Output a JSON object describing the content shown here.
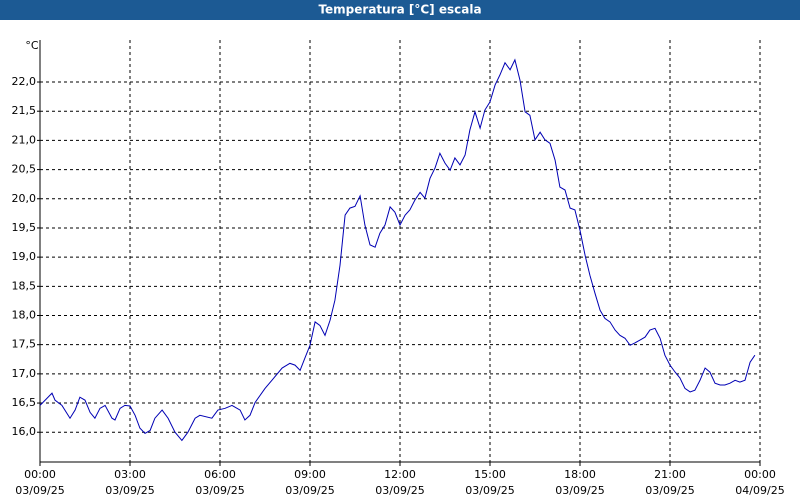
{
  "chart_data": {
    "type": "line",
    "title": "Temperatura [°C] escala",
    "y_label": "°C",
    "xlim": [
      0,
      24
    ],
    "ylim": [
      15.49,
      22.72
    ],
    "xticks": [
      {
        "value": 0,
        "label": "00:00",
        "date": "03/09/25"
      },
      {
        "value": 3,
        "label": "03:00",
        "date": "03/09/25"
      },
      {
        "value": 6,
        "label": "06:00",
        "date": "03/09/25"
      },
      {
        "value": 9,
        "label": "09:00",
        "date": "03/09/25"
      },
      {
        "value": 12,
        "label": "12:00",
        "date": "03/09/25"
      },
      {
        "value": 15,
        "label": "15:00",
        "date": "03/09/25"
      },
      {
        "value": 18,
        "label": "18:00",
        "date": "03/09/25"
      },
      {
        "value": 21,
        "label": "21:00",
        "date": "03/09/25"
      },
      {
        "value": 24,
        "label": "00:00",
        "date": "04/09/25"
      }
    ],
    "yticks": [
      {
        "value": 16,
        "label": "16,0"
      },
      {
        "value": 16.5,
        "label": "16,5"
      },
      {
        "value": 17,
        "label": "17,0"
      },
      {
        "value": 17.5,
        "label": "17,5"
      },
      {
        "value": 18,
        "label": "18,0"
      },
      {
        "value": 18.5,
        "label": "18,5"
      },
      {
        "value": 19,
        "label": "19,0"
      },
      {
        "value": 19.5,
        "label": "19,5"
      },
      {
        "value": 20,
        "label": "20,0"
      },
      {
        "value": 20.5,
        "label": "20,5"
      },
      {
        "value": 21,
        "label": "21,0"
      },
      {
        "value": 21.5,
        "label": "21,5"
      },
      {
        "value": 22,
        "label": "22,0"
      }
    ],
    "grid": true,
    "x": [
      0,
      0.23,
      0.4,
      0.5,
      0.73,
      1.0,
      1.17,
      1.33,
      1.5,
      1.67,
      1.83,
      2.0,
      2.17,
      2.4,
      2.5,
      2.67,
      2.83,
      3.0,
      3.17,
      3.33,
      3.5,
      3.67,
      3.83,
      4.07,
      4.27,
      4.5,
      4.73,
      4.93,
      5.17,
      5.33,
      5.73,
      5.93,
      6.17,
      6.4,
      6.67,
      6.83,
      7.0,
      7.17,
      7.5,
      7.73,
      8.07,
      8.33,
      8.5,
      8.67,
      8.83,
      9.0,
      9.17,
      9.33,
      9.5,
      9.67,
      9.83,
      10.0,
      10.17,
      10.33,
      10.5,
      10.67,
      10.83,
      11.0,
      11.17,
      11.33,
      11.5,
      11.67,
      11.83,
      12.0,
      12.17,
      12.33,
      12.5,
      12.67,
      12.83,
      13.0,
      13.17,
      13.33,
      13.5,
      13.67,
      13.83,
      14.0,
      14.17,
      14.33,
      14.5,
      14.67,
      14.83,
      15.0,
      15.17,
      15.33,
      15.5,
      15.67,
      15.83,
      16.0,
      16.17,
      16.33,
      16.5,
      16.67,
      16.83,
      17.0,
      17.17,
      17.33,
      17.5,
      17.67,
      17.83,
      18.0,
      18.17,
      18.33,
      18.5,
      18.67,
      18.83,
      19.0,
      19.17,
      19.33,
      19.5,
      19.67,
      19.83,
      20.0,
      20.17,
      20.33,
      20.5,
      20.67,
      20.83,
      21.0,
      21.17,
      21.33,
      21.5,
      21.67,
      21.83,
      22.0,
      22.17,
      22.33,
      22.5,
      22.67,
      22.83,
      23.0,
      23.17,
      23.33,
      23.5,
      23.67,
      23.83
    ],
    "series": [
      {
        "color": "#0000b4",
        "values": [
          16.46,
          16.58,
          16.67,
          16.55,
          16.46,
          16.24,
          16.38,
          16.6,
          16.55,
          16.34,
          16.24,
          16.41,
          16.46,
          16.24,
          16.21,
          16.41,
          16.46,
          16.45,
          16.29,
          16.07,
          15.98,
          16.03,
          16.24,
          16.38,
          16.24,
          16.0,
          15.86,
          16.0,
          16.24,
          16.29,
          16.24,
          16.38,
          16.41,
          16.46,
          16.38,
          16.21,
          16.29,
          16.51,
          16.75,
          16.89,
          17.1,
          17.18,
          17.15,
          17.06,
          17.27,
          17.49,
          17.89,
          17.83,
          17.66,
          17.92,
          18.26,
          18.86,
          19.72,
          19.84,
          19.87,
          20.05,
          19.55,
          19.21,
          19.17,
          19.41,
          19.55,
          19.86,
          19.77,
          19.55,
          19.72,
          19.81,
          19.98,
          20.11,
          20.01,
          20.35,
          20.53,
          20.78,
          20.61,
          20.49,
          20.7,
          20.58,
          20.75,
          21.18,
          21.49,
          21.21,
          21.52,
          21.66,
          21.95,
          22.12,
          22.33,
          22.21,
          22.38,
          22.03,
          21.49,
          21.43,
          21.01,
          21.14,
          21.01,
          20.95,
          20.66,
          20.2,
          20.15,
          19.84,
          19.81,
          19.46,
          19.03,
          18.69,
          18.38,
          18.09,
          17.95,
          17.89,
          17.75,
          17.66,
          17.61,
          17.49,
          17.53,
          17.58,
          17.63,
          17.75,
          17.78,
          17.61,
          17.32,
          17.15,
          17.03,
          16.93,
          16.75,
          16.69,
          16.72,
          16.89,
          17.1,
          17.03,
          16.84,
          16.81,
          16.81,
          16.84,
          16.89,
          16.86,
          16.89,
          17.2,
          17.32
        ]
      }
    ]
  }
}
